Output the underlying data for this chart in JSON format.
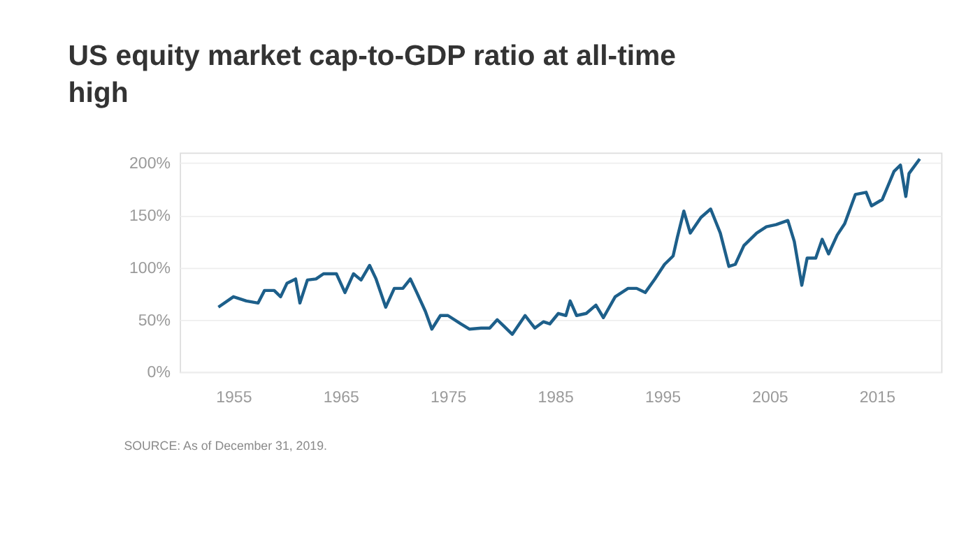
{
  "chart_data": {
    "type": "line",
    "title": "US equity market cap-to-GDP ratio at all-time high",
    "x": [
      1953.6,
      1955,
      1956.2,
      1957.3,
      1957.9,
      1958.8,
      1959.4,
      1960,
      1960.8,
      1961.2,
      1961.9,
      1962.7,
      1963.4,
      1964.6,
      1965.4,
      1966.2,
      1966.9,
      1967.7,
      1968.3,
      1969.2,
      1970,
      1970.8,
      1971.5,
      1972.1,
      1972.9,
      1973.5,
      1974.3,
      1975,
      1976.2,
      1977,
      1978.1,
      1978.9,
      1979.6,
      1980.2,
      1981,
      1982.2,
      1983.1,
      1983.9,
      1984.5,
      1985.3,
      1986,
      1986.4,
      1987,
      1987.9,
      1988.8,
      1989.5,
      1990.6,
      1991.8,
      1992.6,
      1993.4,
      1994.3,
      1995.2,
      1996,
      1996.4,
      1997,
      1997.6,
      1998.6,
      1999.5,
      2000.4,
      2001.2,
      2001.8,
      2002.6,
      2003.8,
      2004.7,
      2005.6,
      2006.7,
      2007.3,
      2008,
      2008.5,
      2009.3,
      2009.9,
      2010.5,
      2011.3,
      2012,
      2013,
      2014,
      2014.5,
      2015.5,
      2016.6,
      2017.2,
      2017.7,
      2018,
      2019
    ],
    "series": [
      {
        "color": "#1d5f8a",
        "values": [
          62,
          72,
          68,
          66,
          78,
          78,
          72,
          85,
          89,
          66,
          88,
          89,
          94,
          94,
          76,
          94,
          88,
          102,
          89,
          62,
          80,
          80,
          89,
          76,
          58,
          41,
          54,
          54,
          46,
          41,
          42,
          42,
          50,
          44,
          36,
          54,
          42,
          48,
          46,
          56,
          54,
          68,
          54,
          56,
          64,
          52,
          72,
          80,
          80,
          76,
          89,
          103,
          111,
          129,
          154,
          133,
          148,
          156,
          133,
          101,
          103,
          121,
          133,
          139,
          141,
          145,
          125,
          83,
          109,
          109,
          127,
          113,
          131,
          142,
          170,
          172,
          159,
          165,
          192,
          198,
          168,
          190,
          204
        ]
      }
    ],
    "xlim": [
      1950,
      2021
    ],
    "xticks": [
      1955,
      1965,
      1975,
      1985,
      1995,
      2005,
      2015
    ],
    "ylim": [
      0,
      210
    ],
    "yticks": [
      {
        "value": 0,
        "label": "0%"
      },
      {
        "value": 50,
        "label": "50%"
      },
      {
        "value": 100,
        "label": "100%"
      },
      {
        "value": 150,
        "label": "150%"
      },
      {
        "value": 200,
        "label": "200%"
      }
    ],
    "grid": "y",
    "line_style": "solid",
    "marker": "none",
    "annotations": [
      "SOURCE: As of December 31, 2019."
    ]
  }
}
